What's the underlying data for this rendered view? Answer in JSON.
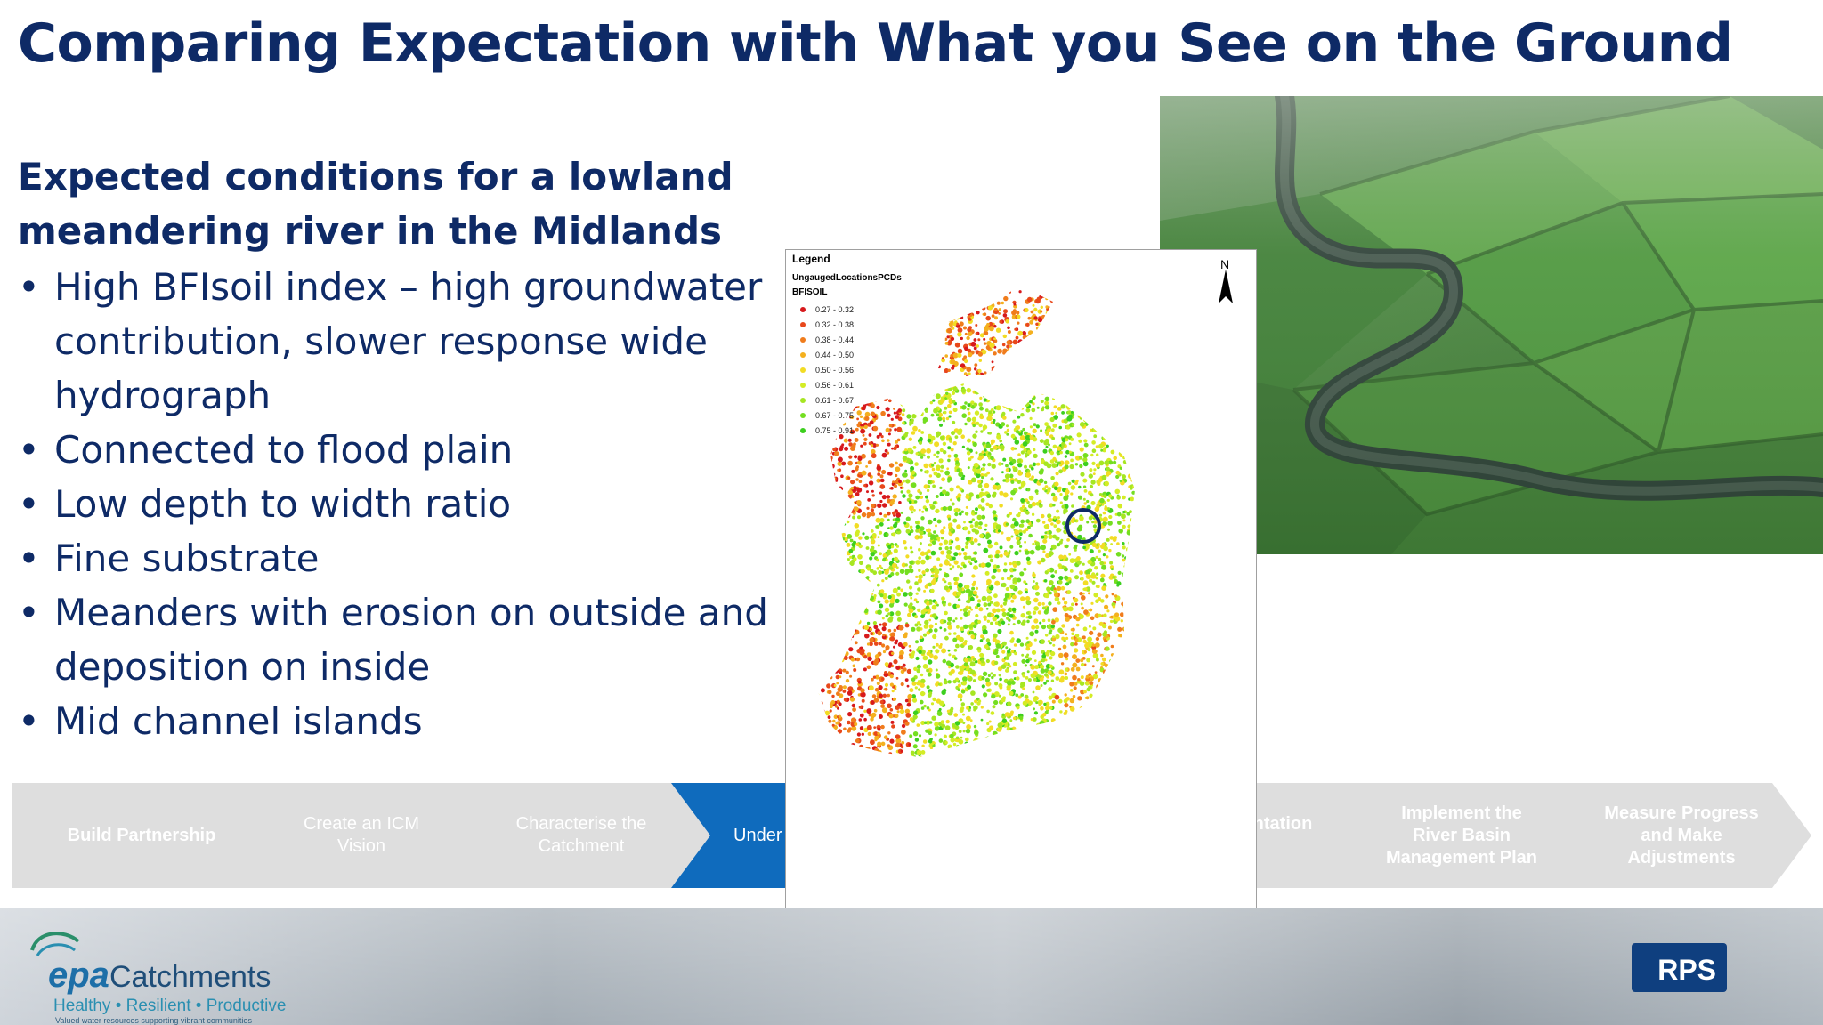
{
  "slide": {
    "title": "Comparing Expectation with What you See on the Ground"
  },
  "content": {
    "subheading": "Expected conditions for a lowland meandering river in the Midlands",
    "bullets": [
      "High BFIsoil index – high groundwater contribution, slower response wide hydrograph",
      "Connected to flood plain",
      "Low depth to width ratio",
      "Fine substrate",
      "Meanders with erosion on outside and deposition on inside",
      "Mid channel islands"
    ]
  },
  "process_steps": [
    {
      "label": "Build Partnership",
      "state": "faded"
    },
    {
      "label": "Create an  ICM Vision",
      "state": "faded"
    },
    {
      "label": "Characterise the Catchment",
      "state": "faded"
    },
    {
      "label": "Under chara",
      "state": "active"
    },
    {
      "label": "n an ntation mme",
      "state": "faded"
    },
    {
      "label": "Implement the River Basin Management Plan",
      "state": "faded"
    },
    {
      "label": "Measure Progress and Make Adjustments",
      "state": "faded"
    }
  ],
  "map": {
    "legend_title": "Legend",
    "layer_name": "UngaugedLocationsPCDs",
    "field_name": "BFISOIL",
    "north_label": "N",
    "classes": [
      {
        "range": "0.27 - 0.32",
        "color": "#d7191c"
      },
      {
        "range": "0.32 - 0.38",
        "color": "#e8481b"
      },
      {
        "range": "0.38 - 0.44",
        "color": "#f07c1c"
      },
      {
        "range": "0.44 - 0.50",
        "color": "#f4b01e"
      },
      {
        "range": "0.50 - 0.56",
        "color": "#f2dc24"
      },
      {
        "range": "0.56 - 0.61",
        "color": "#d4ec25"
      },
      {
        "range": "0.61 - 0.67",
        "color": "#a6e622"
      },
      {
        "range": "0.67 - 0.75",
        "color": "#74de20"
      },
      {
        "range": "0.75 - 0.91",
        "color": "#3ccf1e"
      }
    ],
    "highlight_marker_color": "#0e2a66"
  },
  "footer": {
    "logo_epa": "epa",
    "logo_catchments": "Catchments",
    "logo_tagline": "Healthy • Resilient • Productive",
    "logo_subtext": "Valued water resources supporting vibrant communities",
    "partner_logo": "RPS"
  },
  "colors": {
    "title": "#0e2a66",
    "active_step": "#0f6bbd",
    "faded_step": "#dedede"
  }
}
